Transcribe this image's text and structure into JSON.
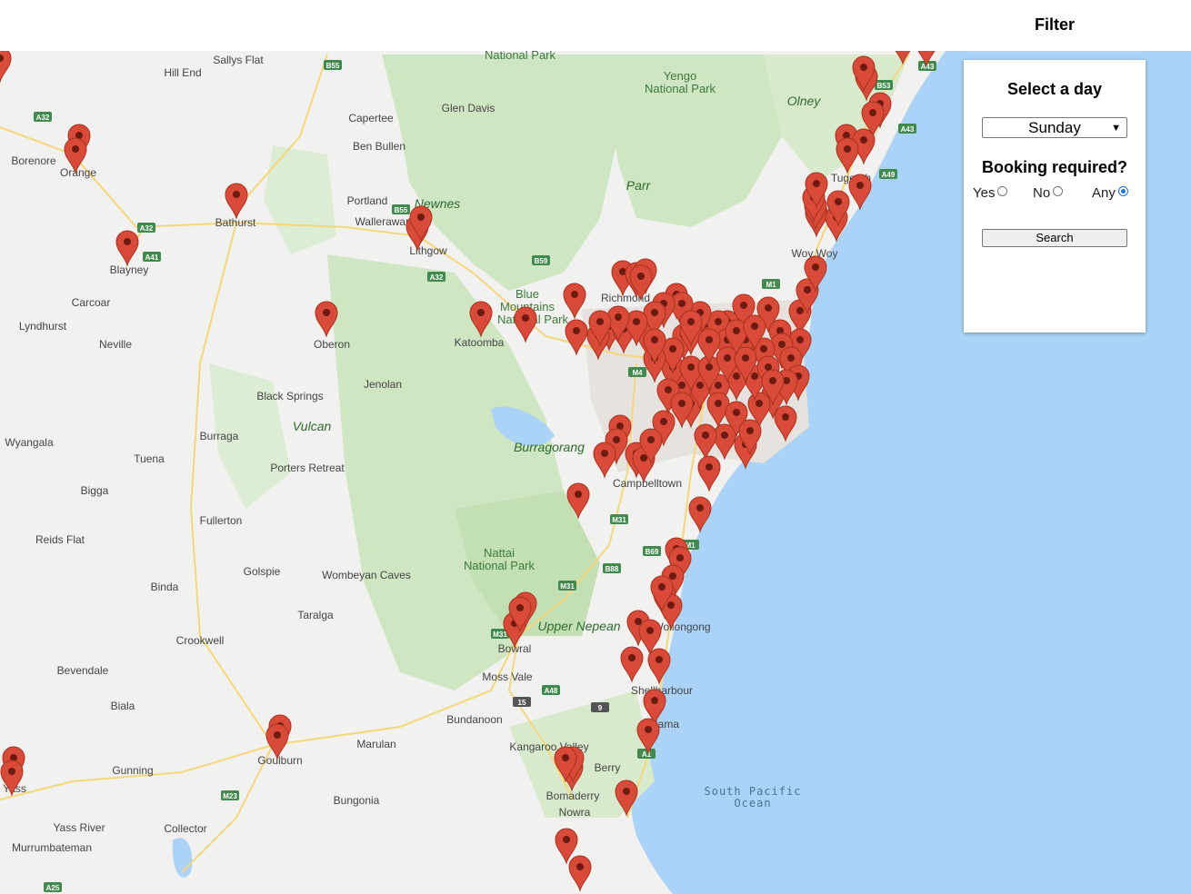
{
  "header": {
    "title": "Filter"
  },
  "filter": {
    "day_heading": "Select a day",
    "day_selected": "Sunday",
    "booking_heading": "Booking required?",
    "options": [
      {
        "label": "Yes",
        "checked": false
      },
      {
        "label": "No",
        "checked": false
      },
      {
        "label": "Any",
        "checked": true
      }
    ],
    "search_label": "Search"
  },
  "map": {
    "places": [
      "Sallys Flat",
      "Hill End",
      "Capertee",
      "Glen Davis",
      "Ben Bullen",
      "Borenore",
      "Orange",
      "Bathurst",
      "Portland",
      "Wallerawang",
      "Lithgow",
      "Blayney",
      "Carcoar",
      "Lyndhurst",
      "Neville",
      "Oberon",
      "Katoomba",
      "Richmond",
      "Jenolan",
      "Black Springs",
      "Burraga",
      "Wyangala",
      "Tuena",
      "Porters Retreat",
      "Bigga",
      "Fullerton",
      "Reids Flat",
      "Golspie",
      "Wombeyan Caves",
      "Binda",
      "Taralga",
      "Crookwell",
      "Bevendale",
      "Biala",
      "Campbelltown",
      "Bowral",
      "Moss Vale",
      "Shellharbour",
      "Bundanoon",
      "Kangaroo Valley",
      "Berry",
      "Bomaderry",
      "Nowra",
      "Goulburn",
      "Marulan",
      "Gunning",
      "Yass",
      "Bungonia",
      "Yass River",
      "Collector",
      "Murrumbateman",
      "Tugerah",
      "Woy Woy",
      "Wollongong",
      "Kiama"
    ],
    "parks": [
      "National Park",
      "Yengo National Park",
      "Blue Mountains National Park",
      "Nattai National Park"
    ],
    "features": [
      "Newnes",
      "Olney",
      "Parr",
      "Vulcan",
      "Burragorang",
      "Upper Nepean"
    ],
    "ocean": [
      "South Pacific",
      "Ocean"
    ],
    "roads": [
      "B55",
      "A32",
      "A41",
      "B59",
      "M4",
      "M31",
      "M1",
      "A48",
      "B69",
      "B88",
      "M23",
      "A25",
      "B53",
      "A43",
      "A49",
      "A1",
      "15",
      "9"
    ],
    "marker_color": "#d94a38"
  }
}
